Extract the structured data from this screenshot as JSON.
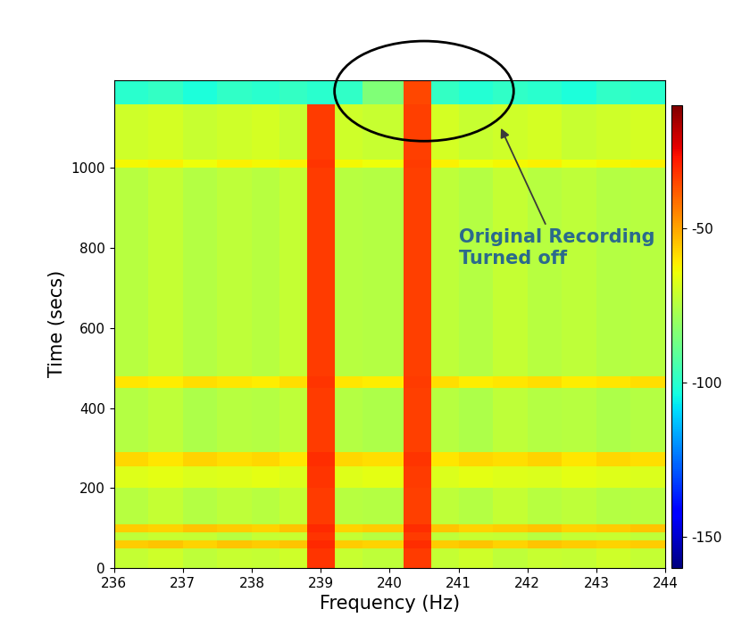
{
  "chart_data": {
    "type": "heatmap",
    "xlabel": "Frequency (Hz)",
    "ylabel": "Time (secs)",
    "xlim": [
      236,
      244
    ],
    "xticks": [
      236,
      237,
      238,
      239,
      240,
      241,
      242,
      243,
      244
    ],
    "ylim": [
      0,
      1220
    ],
    "yticks": [
      0,
      200,
      400,
      600,
      800,
      1000
    ],
    "x_edges": [
      236,
      236.5,
      237,
      237.5,
      238,
      238.4,
      238.8,
      239.2,
      239.6,
      240.2,
      240.6,
      241,
      241.5,
      242,
      242.5,
      243,
      243.5,
      244
    ],
    "y_edges": [
      0,
      50,
      70,
      90,
      110,
      200,
      255,
      290,
      450,
      480,
      1000,
      1020,
      1160,
      1220
    ],
    "cells": [
      [
        -72,
        -70,
        -73,
        -71,
        -72,
        -70,
        -32,
        -71,
        -73,
        -33,
        -72,
        -70,
        -73,
        -71,
        -72,
        -70,
        -72
      ],
      [
        -56,
        -55,
        -57,
        -55,
        -56,
        -55,
        -30,
        -56,
        -57,
        -31,
        -56,
        -55,
        -57,
        -55,
        -56,
        -57,
        -56
      ],
      [
        -73,
        -71,
        -72,
        -74,
        -72,
        -71,
        -32,
        -72,
        -74,
        -33,
        -73,
        -71,
        -72,
        -74,
        -72,
        -71,
        -73
      ],
      [
        -56,
        -57,
        -55,
        -56,
        -57,
        -55,
        -30,
        -57,
        -56,
        -31,
        -55,
        -57,
        -56,
        -55,
        -57,
        -56,
        -55
      ],
      [
        -74,
        -72,
        -75,
        -73,
        -74,
        -72,
        -33,
        -74,
        -75,
        -34,
        -73,
        -75,
        -72,
        -74,
        -73,
        -75,
        -74
      ],
      [
        -67,
        -66,
        -68,
        -67,
        -66,
        -68,
        -32,
        -67,
        -66,
        -33,
        -68,
        -66,
        -67,
        -68,
        -66,
        -67,
        -68
      ],
      [
        -58,
        -60,
        -57,
        -59,
        -58,
        -60,
        -31,
        -58,
        -59,
        -32,
        -60,
        -58,
        -59,
        -57,
        -60,
        -58,
        -59
      ],
      [
        -75,
        -73,
        -76,
        -74,
        -75,
        -73,
        -33,
        -75,
        -76,
        -34,
        -74,
        -76,
        -73,
        -75,
        -74,
        -76,
        -75
      ],
      [
        -60,
        -61,
        -59,
        -60,
        -61,
        -59,
        -32,
        -60,
        -61,
        -33,
        -59,
        -61,
        -60,
        -59,
        -61,
        -60,
        -59
      ],
      [
        -74,
        -72,
        -75,
        -73,
        -74,
        -72,
        -33,
        -74,
        -75,
        -34,
        -73,
        -75,
        -72,
        -74,
        -73,
        -75,
        -74
      ],
      [
        -63,
        -62,
        -64,
        -62,
        -63,
        -62,
        -32,
        -63,
        -64,
        -33,
        -62,
        -64,
        -63,
        -62,
        -64,
        -63,
        -62
      ],
      [
        -70,
        -69,
        -71,
        -70,
        -69,
        -71,
        -33,
        -70,
        -71,
        -34,
        -69,
        -71,
        -70,
        -69,
        -71,
        -70,
        -69
      ],
      [
        -100,
        -98,
        -102,
        -99,
        -100,
        -98,
        -100,
        -99,
        -84,
        -35,
        -98,
        -101,
        -99,
        -100,
        -102,
        -99,
        -100
      ]
    ],
    "color_range": [
      -160,
      -10
    ],
    "color_ticks": [
      -150,
      -100,
      -50
    ],
    "annotations": [
      {
        "text": "Original Recording\nTurned off"
      }
    ]
  }
}
